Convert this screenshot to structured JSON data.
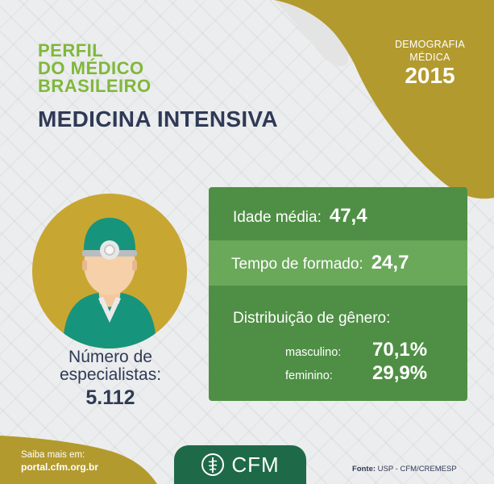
{
  "header": {
    "line1": "PERFIL",
    "line2": "DO MÉDICO",
    "line3": "BRASILEIRO",
    "specialty": "MEDICINA INTENSIVA"
  },
  "badge": {
    "line1": "DEMOGRAFIA",
    "line2": "MÉDICA",
    "year": "2015"
  },
  "specialists": {
    "label_line1": "Número de",
    "label_line2": "especialistas:",
    "value": "5.112"
  },
  "stats": {
    "age_label": "Idade média:",
    "age_value": "47,4",
    "grad_label": "Tempo de formado:",
    "grad_value": "24,7",
    "gender_title": "Distribuição de gênero:",
    "male_label": "masculino:",
    "male_value": "70,1%",
    "female_label": "feminino:",
    "female_value": "29,9%"
  },
  "footer": {
    "more_label": "Saiba mais em:",
    "url": "portal.cfm.org.br",
    "logo_text": "CFM",
    "source_label": "Fonte:",
    "source_value": "USP - CFM/CREMESP"
  },
  "colors": {
    "green_title": "#7fb83b",
    "navy": "#2f3a56",
    "gold": "#b39a2e",
    "panel_green": "#4f8f45",
    "row_green": "#6aa95a",
    "cfm_green": "#1e6a48"
  }
}
